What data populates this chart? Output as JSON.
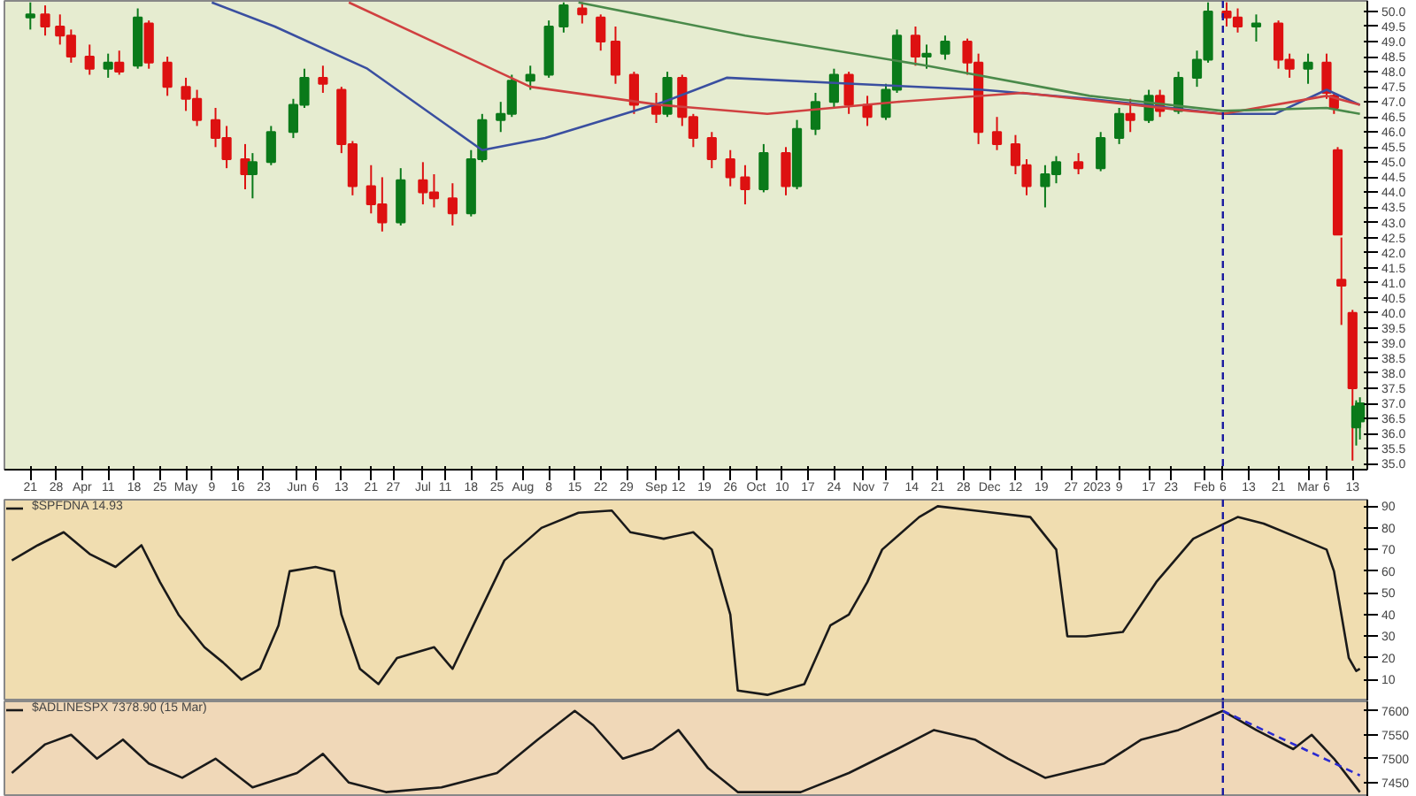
{
  "chart_data": [
    {
      "type": "candlestick",
      "xlim": [
        "2022-03-14",
        "2023-03-17"
      ],
      "ylim": [
        34.8,
        50.35
      ],
      "x": [
        "2022-03-21",
        "2022-03-25",
        "2022-03-29",
        "2022-04-01",
        "2022-04-06",
        "2022-04-11",
        "2022-04-14",
        "2022-04-19",
        "2022-04-22",
        "2022-04-27",
        "2022-05-02",
        "2022-05-05",
        "2022-05-10",
        "2022-05-13",
        "2022-05-18",
        "2022-05-20",
        "2022-05-25",
        "2022-05-31",
        "2022-06-03",
        "2022-06-08",
        "2022-06-13",
        "2022-06-16",
        "2022-06-21",
        "2022-06-24",
        "2022-06-29",
        "2022-07-05",
        "2022-07-08",
        "2022-07-13",
        "2022-07-18",
        "2022-07-21",
        "2022-07-26",
        "2022-07-29",
        "2022-08-03",
        "2022-08-08",
        "2022-08-12",
        "2022-08-17",
        "2022-08-22",
        "2022-08-26",
        "2022-08-31",
        "2022-09-06",
        "2022-09-09",
        "2022-09-13",
        "2022-09-16",
        "2022-09-21",
        "2022-09-26",
        "2022-09-30",
        "2022-10-05",
        "2022-10-11",
        "2022-10-14",
        "2022-10-19",
        "2022-10-24",
        "2022-10-28",
        "2022-11-02",
        "2022-11-07",
        "2022-11-10",
        "2022-11-15",
        "2022-11-18",
        "2022-11-23",
        "2022-11-29",
        "2022-12-02",
        "2022-12-07",
        "2022-12-12",
        "2022-12-15",
        "2022-12-20",
        "2022-12-23",
        "2022-12-29",
        "2023-01-04",
        "2023-01-09",
        "2023-01-12",
        "2023-01-17",
        "2023-01-20",
        "2023-01-25",
        "2023-01-30",
        "2023-02-02",
        "2023-02-07",
        "2023-02-10",
        "2023-02-15",
        "2023-02-21",
        "2023-02-24",
        "2023-03-01",
        "2023-03-06",
        "2023-03-08",
        "2023-03-09",
        "2023-03-10",
        "2023-03-13",
        "2023-03-14",
        "2023-03-15"
      ],
      "ohlc": [
        [
          49.8,
          50.3,
          49.4,
          49.9
        ],
        [
          49.9,
          50.2,
          49.2,
          49.5
        ],
        [
          49.5,
          49.9,
          48.9,
          49.2
        ],
        [
          49.2,
          49.4,
          48.3,
          48.5
        ],
        [
          48.5,
          48.9,
          47.9,
          48.1
        ],
        [
          48.1,
          48.6,
          47.8,
          48.3
        ],
        [
          48.3,
          48.7,
          47.9,
          48.0
        ],
        [
          48.2,
          50.1,
          48.1,
          49.8
        ],
        [
          49.6,
          49.7,
          48.1,
          48.3
        ],
        [
          48.3,
          48.5,
          47.2,
          47.5
        ],
        [
          47.5,
          47.8,
          46.7,
          47.1
        ],
        [
          47.1,
          47.4,
          46.2,
          46.4
        ],
        [
          46.4,
          46.8,
          45.5,
          45.8
        ],
        [
          45.8,
          46.2,
          44.8,
          45.1
        ],
        [
          45.1,
          45.6,
          44.1,
          44.6
        ],
        [
          44.6,
          45.3,
          43.8,
          45.0
        ],
        [
          45.0,
          46.2,
          44.9,
          46.0
        ],
        [
          46.0,
          47.1,
          45.8,
          46.9
        ],
        [
          46.9,
          48.1,
          46.8,
          47.8
        ],
        [
          47.8,
          48.2,
          47.3,
          47.6
        ],
        [
          47.4,
          47.5,
          45.3,
          45.6
        ],
        [
          45.6,
          45.7,
          43.9,
          44.2
        ],
        [
          44.2,
          44.9,
          43.3,
          43.6
        ],
        [
          43.6,
          44.5,
          42.7,
          43.0
        ],
        [
          43.0,
          44.8,
          42.9,
          44.4
        ],
        [
          44.4,
          45.0,
          43.6,
          44.0
        ],
        [
          44.0,
          44.6,
          43.5,
          43.8
        ],
        [
          43.8,
          44.3,
          42.9,
          43.3
        ],
        [
          43.3,
          45.4,
          43.2,
          45.1
        ],
        [
          45.1,
          46.6,
          45.0,
          46.4
        ],
        [
          46.4,
          47.0,
          46.0,
          46.6
        ],
        [
          46.6,
          47.9,
          46.5,
          47.7
        ],
        [
          47.7,
          48.2,
          47.4,
          47.9
        ],
        [
          47.9,
          49.7,
          47.8,
          49.5
        ],
        [
          49.5,
          50.3,
          49.3,
          50.2
        ],
        [
          50.1,
          50.3,
          49.6,
          49.9
        ],
        [
          49.8,
          49.9,
          48.7,
          49.0
        ],
        [
          49.0,
          49.5,
          47.6,
          47.9
        ],
        [
          47.9,
          48.0,
          46.6,
          46.9
        ],
        [
          46.9,
          47.3,
          46.3,
          46.6
        ],
        [
          46.6,
          48.0,
          46.5,
          47.8
        ],
        [
          47.8,
          47.9,
          46.2,
          46.5
        ],
        [
          46.5,
          46.6,
          45.5,
          45.8
        ],
        [
          45.8,
          46.0,
          44.8,
          45.1
        ],
        [
          45.1,
          45.4,
          44.2,
          44.5
        ],
        [
          44.5,
          44.9,
          43.6,
          44.1
        ],
        [
          44.1,
          45.6,
          44.0,
          45.3
        ],
        [
          45.3,
          45.5,
          43.9,
          44.2
        ],
        [
          44.2,
          46.4,
          44.1,
          46.1
        ],
        [
          46.1,
          47.3,
          45.9,
          47.0
        ],
        [
          47.0,
          48.1,
          46.8,
          47.9
        ],
        [
          47.9,
          48.0,
          46.6,
          46.9
        ],
        [
          46.9,
          47.2,
          46.2,
          46.5
        ],
        [
          46.5,
          47.6,
          46.4,
          47.4
        ],
        [
          47.4,
          49.4,
          47.3,
          49.2
        ],
        [
          49.2,
          49.5,
          48.2,
          48.5
        ],
        [
          48.5,
          48.9,
          48.1,
          48.6
        ],
        [
          48.6,
          49.2,
          48.4,
          49.0
        ],
        [
          49.0,
          49.1,
          47.9,
          48.3
        ],
        [
          48.3,
          48.6,
          45.6,
          46.0
        ],
        [
          46.0,
          46.5,
          45.4,
          45.6
        ],
        [
          45.6,
          45.9,
          44.6,
          44.9
        ],
        [
          44.9,
          45.1,
          43.9,
          44.2
        ],
        [
          44.2,
          44.9,
          43.5,
          44.6
        ],
        [
          44.6,
          45.2,
          44.3,
          45.0
        ],
        [
          45.0,
          45.3,
          44.6,
          44.8
        ],
        [
          44.8,
          46.0,
          44.7,
          45.8
        ],
        [
          45.8,
          46.8,
          45.6,
          46.6
        ],
        [
          46.6,
          47.1,
          46.0,
          46.4
        ],
        [
          46.4,
          47.4,
          46.3,
          47.2
        ],
        [
          47.2,
          47.4,
          46.5,
          46.7
        ],
        [
          46.7,
          48.0,
          46.6,
          47.8
        ],
        [
          47.8,
          48.7,
          47.5,
          48.4
        ],
        [
          48.4,
          50.3,
          48.3,
          50.0
        ],
        [
          50.0,
          50.3,
          49.5,
          49.8
        ],
        [
          49.8,
          50.1,
          49.3,
          49.5
        ],
        [
          49.5,
          49.9,
          49.0,
          49.6
        ],
        [
          49.6,
          49.7,
          48.1,
          48.4
        ],
        [
          48.4,
          48.6,
          47.8,
          48.1
        ],
        [
          48.1,
          48.6,
          47.6,
          48.3
        ],
        [
          48.3,
          48.6,
          47.1,
          47.3
        ],
        [
          47.2,
          47.3,
          46.6,
          46.8
        ],
        [
          45.4,
          45.5,
          42.6,
          42.6
        ],
        [
          41.1,
          42.5,
          39.6,
          40.9
        ],
        [
          40.0,
          40.1,
          35.1,
          37.5
        ],
        [
          36.2,
          37.1,
          35.6,
          36.9
        ],
        [
          36.4,
          37.2,
          35.8,
          37.0
        ]
      ],
      "series": [
        {
          "type": "line",
          "color": "#3a4fa0",
          "x": [
            "2022-05-09",
            "2022-05-26",
            "2022-06-20",
            "2022-07-21",
            "2022-08-07",
            "2022-09-08",
            "2022-09-25",
            "2022-10-29",
            "2022-12-03",
            "2023-01-01",
            "2023-02-06",
            "2023-02-20",
            "2023-03-06",
            "2023-03-15"
          ],
          "values": [
            50.3,
            49.5,
            48.1,
            45.4,
            45.8,
            47.0,
            47.8,
            47.6,
            47.4,
            47.1,
            46.6,
            46.6,
            47.4,
            46.9
          ]
        },
        {
          "type": "line",
          "color": "#d04040",
          "x": [
            "2022-06-15",
            "2022-08-03",
            "2022-09-07",
            "2022-10-06",
            "2022-11-10",
            "2022-12-14",
            "2023-01-28",
            "2023-02-06",
            "2023-03-06",
            "2023-03-15"
          ],
          "values": [
            50.3,
            47.5,
            46.9,
            46.6,
            47.0,
            47.3,
            46.7,
            46.6,
            47.2,
            46.9
          ]
        },
        {
          "type": "line",
          "color": "#4a8a4a",
          "x": [
            "2022-08-16",
            "2022-09-30",
            "2022-11-18",
            "2023-01-01",
            "2023-02-06",
            "2023-03-06",
            "2023-03-15"
          ],
          "values": [
            50.3,
            49.2,
            48.2,
            47.2,
            46.7,
            46.8,
            46.6
          ]
        }
      ],
      "ref_lines": [
        {
          "axis": "x",
          "value": "2023-02-06",
          "color": "#1a1aa0",
          "line_style": "dashed"
        }
      ],
      "xticks": [
        {
          "value": "2022-03-21",
          "label": "21"
        },
        {
          "value": "2022-03-28",
          "label": "28"
        },
        {
          "value": "2022-04-04",
          "label": "Apr"
        },
        {
          "value": "2022-04-11",
          "label": "11"
        },
        {
          "value": "2022-04-18",
          "label": "18"
        },
        {
          "value": "2022-04-25",
          "label": "25"
        },
        {
          "value": "2022-05-02",
          "label": "May"
        },
        {
          "value": "2022-05-09",
          "label": "9"
        },
        {
          "value": "2022-05-16",
          "label": "16"
        },
        {
          "value": "2022-05-23",
          "label": "23"
        },
        {
          "value": "2022-06-01",
          "label": "Jun"
        },
        {
          "value": "2022-06-06",
          "label": "6"
        },
        {
          "value": "2022-06-13",
          "label": "13"
        },
        {
          "value": "2022-06-21",
          "label": "21"
        },
        {
          "value": "2022-06-27",
          "label": "27"
        },
        {
          "value": "2022-07-05",
          "label": "Jul"
        },
        {
          "value": "2022-07-11",
          "label": "11"
        },
        {
          "value": "2022-07-18",
          "label": "18"
        },
        {
          "value": "2022-07-25",
          "label": "25"
        },
        {
          "value": "2022-08-01",
          "label": "Aug"
        },
        {
          "value": "2022-08-08",
          "label": "8"
        },
        {
          "value": "2022-08-15",
          "label": "15"
        },
        {
          "value": "2022-08-22",
          "label": "22"
        },
        {
          "value": "2022-08-29",
          "label": "29"
        },
        {
          "value": "2022-09-06",
          "label": "Sep"
        },
        {
          "value": "2022-09-12",
          "label": "12"
        },
        {
          "value": "2022-09-19",
          "label": "19"
        },
        {
          "value": "2022-09-26",
          "label": "26"
        },
        {
          "value": "2022-10-03",
          "label": "Oct"
        },
        {
          "value": "2022-10-10",
          "label": "10"
        },
        {
          "value": "2022-10-17",
          "label": "17"
        },
        {
          "value": "2022-10-24",
          "label": "24"
        },
        {
          "value": "2022-11-01",
          "label": "Nov"
        },
        {
          "value": "2022-11-07",
          "label": "7"
        },
        {
          "value": "2022-11-14",
          "label": "14"
        },
        {
          "value": "2022-11-21",
          "label": "21"
        },
        {
          "value": "2022-11-28",
          "label": "28"
        },
        {
          "value": "2022-12-05",
          "label": "Dec"
        },
        {
          "value": "2022-12-12",
          "label": "12"
        },
        {
          "value": "2022-12-19",
          "label": "19"
        },
        {
          "value": "2022-12-27",
          "label": "27"
        },
        {
          "value": "2023-01-03",
          "label": "2023"
        },
        {
          "value": "2023-01-09",
          "label": "9"
        },
        {
          "value": "2023-01-17",
          "label": "17"
        },
        {
          "value": "2023-01-23",
          "label": "23"
        },
        {
          "value": "2023-02-01",
          "label": "Feb"
        },
        {
          "value": "2023-02-06",
          "label": "6"
        },
        {
          "value": "2023-02-13",
          "label": "13"
        },
        {
          "value": "2023-02-21",
          "label": "21"
        },
        {
          "value": "2023-03-01",
          "label": "Mar"
        },
        {
          "value": "2023-03-06",
          "label": "6"
        },
        {
          "value": "2023-03-13",
          "label": "13"
        }
      ],
      "yticks": [
        {
          "value": 35,
          "label": "35.0"
        },
        {
          "value": 35.5,
          "label": "35.5"
        },
        {
          "value": 36,
          "label": "36.0"
        },
        {
          "value": 36.5,
          "label": "36.5"
        },
        {
          "value": 37,
          "label": "37.0"
        },
        {
          "value": 37.5,
          "label": "37.5"
        },
        {
          "value": 38,
          "label": "38.0"
        },
        {
          "value": 38.5,
          "label": "38.5"
        },
        {
          "value": 39,
          "label": "39.0"
        },
        {
          "value": 39.5,
          "label": "39.5"
        },
        {
          "value": 40,
          "label": "40.0"
        },
        {
          "value": 40.5,
          "label": "40.5"
        },
        {
          "value": 41,
          "label": "41.0"
        },
        {
          "value": 41.5,
          "label": "41.5"
        },
        {
          "value": 42,
          "label": "42.0"
        },
        {
          "value": 42.5,
          "label": "42.5"
        },
        {
          "value": 43,
          "label": "43.0"
        },
        {
          "value": 43.5,
          "label": "43.5"
        },
        {
          "value": 44,
          "label": "44.0"
        },
        {
          "value": 44.5,
          "label": "44.5"
        },
        {
          "value": 45,
          "label": "45.0"
        },
        {
          "value": 45.5,
          "label": "45.5"
        },
        {
          "value": 46,
          "label": "46.0"
        },
        {
          "value": 46.5,
          "label": "46.5"
        },
        {
          "value": 47,
          "label": "47.0"
        },
        {
          "value": 47.5,
          "label": "47.5"
        },
        {
          "value": 48,
          "label": "48.0"
        },
        {
          "value": 48.5,
          "label": "48.5"
        },
        {
          "value": 49,
          "label": "49.0"
        },
        {
          "value": 49.5,
          "label": "49.5"
        },
        {
          "value": 50,
          "label": "50.0"
        }
      ]
    },
    {
      "type": "line",
      "xlim": [
        "2022-03-14",
        "2023-03-17"
      ],
      "ylim": [
        0,
        93
      ],
      "yticks": [
        10,
        20,
        30,
        40,
        50,
        60,
        70,
        80,
        90
      ],
      "tick_labels": "y",
      "legend": "top left",
      "series": [
        {
          "name": "$SPFDNA 14.93",
          "color": "#1a1a1a",
          "x": [
            "2022-03-16",
            "2022-03-23",
            "2022-03-30",
            "2022-04-06",
            "2022-04-13",
            "2022-04-20",
            "2022-04-25",
            "2022-04-30",
            "2022-05-07",
            "2022-05-12",
            "2022-05-17",
            "2022-05-22",
            "2022-05-27",
            "2022-05-30",
            "2022-06-06",
            "2022-06-11",
            "2022-06-13",
            "2022-06-18",
            "2022-06-23",
            "2022-06-28",
            "2022-07-08",
            "2022-07-13",
            "2022-07-20",
            "2022-07-27",
            "2022-08-06",
            "2022-08-16",
            "2022-08-25",
            "2022-08-30",
            "2022-09-08",
            "2022-09-16",
            "2022-09-21",
            "2022-09-26",
            "2022-09-28",
            "2022-10-06",
            "2022-10-16",
            "2022-10-23",
            "2022-10-28",
            "2022-11-02",
            "2022-11-06",
            "2022-11-16",
            "2022-11-21",
            "2022-12-01",
            "2022-12-16",
            "2022-12-23",
            "2022-12-26",
            "2022-12-31",
            "2023-01-10",
            "2023-01-19",
            "2023-01-29",
            "2023-02-10",
            "2023-02-17",
            "2023-02-27",
            "2023-03-06",
            "2023-03-08",
            "2023-03-12",
            "2023-03-14",
            "2023-03-15"
          ],
          "values": [
            65,
            72,
            78,
            68,
            62,
            72,
            55,
            40,
            25,
            18,
            10,
            15,
            35,
            60,
            62,
            60,
            40,
            15,
            8,
            20,
            25,
            15,
            40,
            65,
            80,
            87,
            88,
            78,
            75,
            78,
            70,
            40,
            5,
            3,
            8,
            35,
            40,
            55,
            70,
            85,
            90,
            88,
            85,
            70,
            30,
            30,
            32,
            55,
            75,
            85,
            82,
            75,
            70,
            60,
            20,
            14,
            15
          ]
        }
      ],
      "ref_lines": [
        {
          "axis": "x",
          "value": "2023-02-06",
          "color": "#1a1aa0",
          "line_style": "dashed"
        }
      ]
    },
    {
      "type": "line",
      "xlim": [
        "2022-03-14",
        "2023-03-17"
      ],
      "ylim": [
        7420,
        7620
      ],
      "yticks": [
        7450,
        7500,
        7550,
        7600
      ],
      "tick_labels": "y",
      "legend": "top left",
      "series": [
        {
          "name": "$ADLINESPX 7378.90 (15 Mar)",
          "color": "#1a1a1a",
          "x": [
            "2022-03-16",
            "2022-03-25",
            "2022-04-01",
            "2022-04-08",
            "2022-04-15",
            "2022-04-22",
            "2022-05-01",
            "2022-05-10",
            "2022-05-20",
            "2022-06-01",
            "2022-06-08",
            "2022-06-15",
            "2022-06-25",
            "2022-07-10",
            "2022-07-25",
            "2022-08-05",
            "2022-08-15",
            "2022-08-20",
            "2022-08-28",
            "2022-09-05",
            "2022-09-12",
            "2022-09-20",
            "2022-09-28",
            "2022-10-15",
            "2022-10-28",
            "2022-11-10",
            "2022-11-20",
            "2022-12-01",
            "2022-12-10",
            "2022-12-20",
            "2023-01-05",
            "2023-01-15",
            "2023-01-25",
            "2023-02-06",
            "2023-02-15",
            "2023-02-25",
            "2023-03-02",
            "2023-03-08",
            "2023-03-12",
            "2023-03-15"
          ],
          "values": [
            7470,
            7530,
            7550,
            7500,
            7540,
            7490,
            7460,
            7500,
            7440,
            7470,
            7510,
            7450,
            7430,
            7440,
            7470,
            7540,
            7600,
            7570,
            7500,
            7520,
            7560,
            7480,
            7430,
            7430,
            7470,
            7520,
            7560,
            7540,
            7500,
            7460,
            7490,
            7540,
            7560,
            7600,
            7560,
            7520,
            7550,
            7500,
            7460,
            7430
          ]
        },
        {
          "type": "line",
          "color": "#2a2ad0",
          "line_style": "dashed",
          "x": [
            "2023-02-06",
            "2023-03-15"
          ],
          "values": [
            7600,
            7465
          ]
        }
      ],
      "ref_lines": [
        {
          "axis": "x",
          "value": "2023-02-06",
          "color": "#1a1aa0",
          "line_style": "dashed"
        }
      ]
    }
  ]
}
